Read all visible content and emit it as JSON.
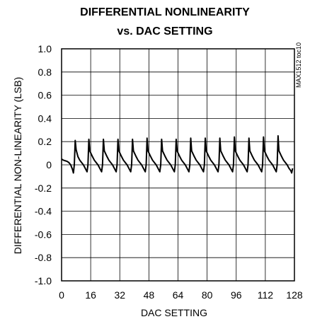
{
  "chart_data": {
    "type": "line",
    "title_line1": "DIFFERENTIAL NONLINEARITY",
    "title_line2": "vs. DAC SETTING",
    "xlabel": "DAC SETTING",
    "ylabel": "DIFFERENTIAL NON-LINEARITY (LSB)",
    "xlim": [
      0,
      128
    ],
    "ylim": [
      -1.0,
      1.0
    ],
    "x_ticks": [
      "0",
      "16",
      "32",
      "48",
      "64",
      "80",
      "96",
      "112",
      "128"
    ],
    "y_ticks": [
      "1.0",
      "0.8",
      "0.6",
      "0.4",
      "0.2",
      "0",
      "-0.2",
      "-0.4",
      "-0.6",
      "-0.8",
      "-1.0"
    ],
    "grid": true,
    "figure_code": "MAX1512 toc10",
    "series": [
      {
        "color": "#000000",
        "points": [
          [
            0,
            0.05
          ],
          [
            1,
            0.04
          ],
          [
            2,
            0.035
          ],
          [
            3,
            0.03
          ],
          [
            4,
            0.02
          ],
          [
            5,
            0.0
          ],
          [
            6,
            -0.04
          ],
          [
            6.5,
            -0.07
          ],
          [
            7,
            0.0
          ],
          [
            7.5,
            0.21
          ],
          [
            8,
            0.13
          ],
          [
            9,
            0.07
          ],
          [
            10,
            0.04
          ],
          [
            11,
            0.02
          ],
          [
            12,
            0.0
          ],
          [
            13,
            -0.03
          ],
          [
            14,
            -0.06
          ],
          [
            14.5,
            0.0
          ],
          [
            15,
            0.22
          ],
          [
            15.5,
            0.12
          ],
          [
            17,
            0.07
          ],
          [
            18,
            0.04
          ],
          [
            19,
            0.02
          ],
          [
            20,
            0.0
          ],
          [
            21,
            -0.03
          ],
          [
            22,
            -0.06
          ],
          [
            22.5,
            0.0
          ],
          [
            23,
            0.22
          ],
          [
            23.5,
            0.12
          ],
          [
            25,
            0.07
          ],
          [
            26,
            0.04
          ],
          [
            27,
            0.02
          ],
          [
            28,
            0.0
          ],
          [
            29,
            -0.03
          ],
          [
            30,
            -0.06
          ],
          [
            30.5,
            0.0
          ],
          [
            31,
            0.22
          ],
          [
            31.5,
            0.12
          ],
          [
            33,
            0.07
          ],
          [
            34,
            0.04
          ],
          [
            35,
            0.02
          ],
          [
            36,
            0.0
          ],
          [
            37,
            -0.03
          ],
          [
            38,
            -0.06
          ],
          [
            38.5,
            0.0
          ],
          [
            39,
            0.22
          ],
          [
            39.5,
            0.12
          ],
          [
            41,
            0.07
          ],
          [
            42,
            0.04
          ],
          [
            43,
            0.02
          ],
          [
            44,
            0.0
          ],
          [
            45,
            -0.03
          ],
          [
            46,
            -0.06
          ],
          [
            46.5,
            0.0
          ],
          [
            47,
            0.23
          ],
          [
            47.5,
            0.12
          ],
          [
            49,
            0.07
          ],
          [
            50,
            0.04
          ],
          [
            51,
            0.02
          ],
          [
            52,
            0.0
          ],
          [
            53,
            -0.03
          ],
          [
            54,
            -0.06
          ],
          [
            54.5,
            0.0
          ],
          [
            55,
            0.22
          ],
          [
            55.5,
            0.12
          ],
          [
            57,
            0.07
          ],
          [
            58,
            0.04
          ],
          [
            59,
            0.02
          ],
          [
            60,
            0.0
          ],
          [
            61,
            -0.03
          ],
          [
            62,
            -0.06
          ],
          [
            62.5,
            0.0
          ],
          [
            63,
            0.22
          ],
          [
            63.5,
            0.12
          ],
          [
            65,
            0.07
          ],
          [
            66,
            0.04
          ],
          [
            67,
            0.02
          ],
          [
            68,
            0.0
          ],
          [
            69,
            -0.03
          ],
          [
            70,
            -0.06
          ],
          [
            70.5,
            0.0
          ],
          [
            71,
            0.23
          ],
          [
            71.5,
            0.12
          ],
          [
            73,
            0.07
          ],
          [
            74,
            0.04
          ],
          [
            75,
            0.02
          ],
          [
            76,
            0.0
          ],
          [
            77,
            -0.03
          ],
          [
            78,
            -0.06
          ],
          [
            78.5,
            0.0
          ],
          [
            79,
            0.23
          ],
          [
            79.5,
            0.12
          ],
          [
            81,
            0.07
          ],
          [
            82,
            0.04
          ],
          [
            83,
            0.02
          ],
          [
            84,
            0.0
          ],
          [
            85,
            -0.03
          ],
          [
            86,
            -0.06
          ],
          [
            86.5,
            0.0
          ],
          [
            87,
            0.23
          ],
          [
            87.5,
            0.12
          ],
          [
            89,
            0.07
          ],
          [
            90,
            0.04
          ],
          [
            91,
            0.02
          ],
          [
            92,
            0.0
          ],
          [
            93,
            -0.03
          ],
          [
            94,
            -0.06
          ],
          [
            94.5,
            0.0
          ],
          [
            95,
            0.24
          ],
          [
            95.5,
            0.12
          ],
          [
            97,
            0.07
          ],
          [
            98,
            0.04
          ],
          [
            99,
            0.02
          ],
          [
            100,
            0.0
          ],
          [
            101,
            -0.03
          ],
          [
            102,
            -0.06
          ],
          [
            102.5,
            0.0
          ],
          [
            103,
            0.23
          ],
          [
            103.5,
            0.12
          ],
          [
            105,
            0.07
          ],
          [
            106,
            0.04
          ],
          [
            107,
            0.02
          ],
          [
            108,
            0.0
          ],
          [
            109,
            -0.03
          ],
          [
            110,
            -0.06
          ],
          [
            110.5,
            0.0
          ],
          [
            111,
            0.24
          ],
          [
            111.5,
            0.12
          ],
          [
            113,
            0.07
          ],
          [
            114,
            0.04
          ],
          [
            115,
            0.02
          ],
          [
            116,
            0.0
          ],
          [
            117,
            -0.03
          ],
          [
            118,
            -0.06
          ],
          [
            118.5,
            0.0
          ],
          [
            119,
            0.25
          ],
          [
            119.5,
            0.12
          ],
          [
            121,
            0.07
          ],
          [
            122,
            0.04
          ],
          [
            123,
            0.02
          ],
          [
            124,
            0.0
          ],
          [
            125,
            -0.03
          ],
          [
            126,
            -0.05
          ],
          [
            126.5,
            -0.07
          ],
          [
            127,
            -0.03
          ]
        ]
      }
    ]
  }
}
